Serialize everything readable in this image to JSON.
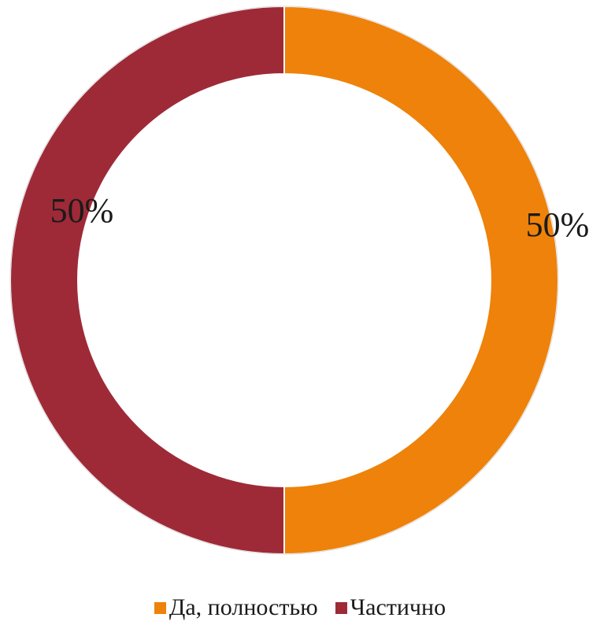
{
  "chart_data": {
    "type": "pie",
    "subtype": "doughnut",
    "title": "",
    "categories": [
      "Да, полностью",
      "Частично"
    ],
    "values": [
      50,
      50
    ],
    "data_labels": [
      "50%",
      "50%"
    ],
    "colors": [
      "#EE820A",
      "#9E2A38"
    ],
    "start_angle_deg": 0,
    "direction": "clockwise",
    "legend_position": "bottom"
  }
}
